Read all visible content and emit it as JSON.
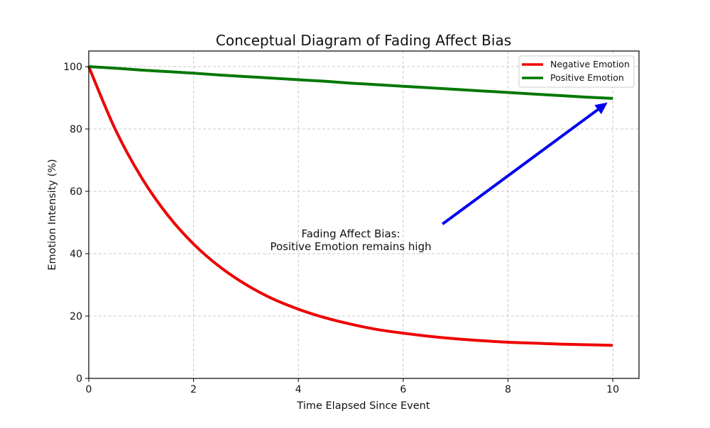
{
  "chart_data": {
    "type": "line",
    "title": "Conceptual Diagram of Fading Affect Bias",
    "xlabel": "Time Elapsed Since Event",
    "ylabel": "Emotion Intensity (%)",
    "xlim": [
      0,
      10.5
    ],
    "ylim": [
      0,
      105
    ],
    "xticks": [
      0,
      2,
      4,
      6,
      8,
      10
    ],
    "yticks": [
      0,
      20,
      40,
      60,
      80,
      100
    ],
    "grid": true,
    "legend_position": "top-right",
    "x": [
      0,
      0.5,
      1,
      1.5,
      2,
      2.5,
      3,
      3.5,
      4,
      4.5,
      5,
      5.5,
      6,
      6.5,
      7,
      7.5,
      8,
      8.5,
      9,
      9.5,
      10
    ],
    "series": [
      {
        "name": "Negative Emotion",
        "color": "#ee0000",
        "values": [
          100.0,
          80.1,
          64.6,
          52.5,
          43.1,
          35.8,
          30.1,
          25.6,
          22.2,
          19.5,
          17.4,
          15.7,
          14.5,
          13.5,
          12.7,
          12.1,
          11.6,
          11.3,
          11.0,
          10.8,
          10.6
        ]
      },
      {
        "name": "Positive Emotion",
        "color": "#007700",
        "values": [
          100.0,
          99.5,
          98.9,
          98.4,
          97.9,
          97.3,
          96.8,
          96.3,
          95.8,
          95.3,
          94.7,
          94.2,
          93.7,
          93.2,
          92.7,
          92.2,
          91.7,
          91.2,
          90.7,
          90.2,
          89.8
        ]
      }
    ],
    "annotation": {
      "lines": [
        "Fading Affect Bias:",
        "Positive Emotion remains high"
      ],
      "text_at": [
        5,
        42
      ],
      "arrow_from": [
        6.75,
        49.5
      ],
      "arrow_to": [
        9.9,
        88.5
      ],
      "arrow_color": "#0000ee"
    }
  }
}
